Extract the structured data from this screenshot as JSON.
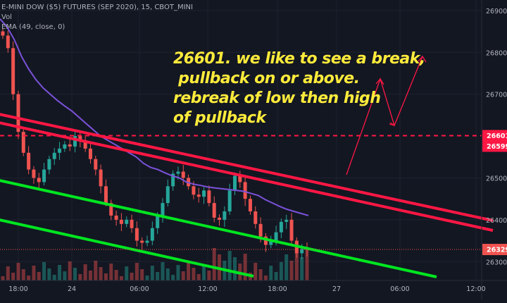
{
  "legend": {
    "symbol_line": "E-MINI DOW ($5) FUTURES (SEP 2020), 15, CBOT_MINI",
    "vol_label": "Vol",
    "ema_label": "EMA (49, close, 0)"
  },
  "annotation": {
    "line1": "26601. we like to see a break,",
    "line2": " pullback on or above.",
    "line3": "rebreak of low then high",
    "line4": "of pullback"
  },
  "colors": {
    "background": "#131722",
    "up_candle": "#26a69a",
    "down_candle": "#ef5350",
    "ema": "#7b52d9",
    "trend_red": "#ff1744",
    "trend_green": "#00e620",
    "annotation": "#ffeb3b",
    "level_line": "#ff1744",
    "axis_text": "#b2b5be"
  },
  "chart_data": {
    "type": "candlestick",
    "title": "E-MINI DOW ($5) FUTURES (SEP 2020), 15, CBOT_MINI",
    "x_tick_labels": [
      "18:00",
      "24",
      "06:00",
      "12:00",
      "18:00",
      "27",
      "06:00",
      "12:00"
    ],
    "y_tick_labels": [
      "26900",
      "26800",
      "26700",
      "26500",
      "26400",
      "26300"
    ],
    "ylim": [
      26255,
      26925
    ],
    "price_labels": [
      {
        "value": 26601,
        "label": "26601"
      },
      {
        "value": 26599,
        "label": "26599"
      },
      {
        "value": 26329,
        "label": "26329"
      }
    ],
    "horizontal_level": 26601,
    "last_price": 26329,
    "close_path": [
      26840,
      26810,
      26700,
      26610,
      26560,
      26520,
      26500,
      26490,
      26520,
      26545,
      26560,
      26570,
      26580,
      26575,
      26600,
      26590,
      26570,
      26545,
      26520,
      26480,
      26440,
      26410,
      26400,
      26390,
      26400,
      26380,
      26350,
      26345,
      26350,
      26380,
      26410,
      26440,
      26480,
      26510,
      26515,
      26500,
      26480,
      26460,
      26455,
      26470,
      26440,
      26405,
      26400,
      26420,
      26470,
      26505,
      26490,
      26450,
      26420,
      26390,
      26360,
      26340,
      26350,
      26370,
      26395,
      26400,
      26350,
      26320,
      26330,
      26329
    ],
    "ema_path": [
      26880,
      26860,
      26830,
      26790,
      26760,
      26735,
      26715,
      26700,
      26685,
      26672,
      26660,
      26645,
      26630,
      26615,
      26600,
      26590,
      26580,
      26570,
      26560,
      26550,
      26535,
      26525,
      26520,
      26512,
      26505,
      26500,
      26490,
      26485,
      26482,
      26478,
      26476,
      26474,
      26472,
      26470,
      26468,
      26463,
      26458,
      26448,
      26440,
      26432,
      26425,
      26420,
      26415,
      26410
    ],
    "trendlines": [
      {
        "color": "red",
        "from": [
          "left",
          26660
        ],
        "to": [
          "right",
          26390
        ]
      },
      {
        "color": "red",
        "from": [
          "left",
          26630
        ],
        "to": [
          "right",
          26370
        ]
      },
      {
        "color": "green",
        "from": [
          "left",
          26495
        ],
        "to": [
          "right",
          26270
        ]
      },
      {
        "color": "green",
        "from": [
          "left",
          26355
        ],
        "to": [
          "right",
          26180
        ]
      }
    ],
    "projection_arrows": "zigzag up: break, pullback, rebreak"
  }
}
